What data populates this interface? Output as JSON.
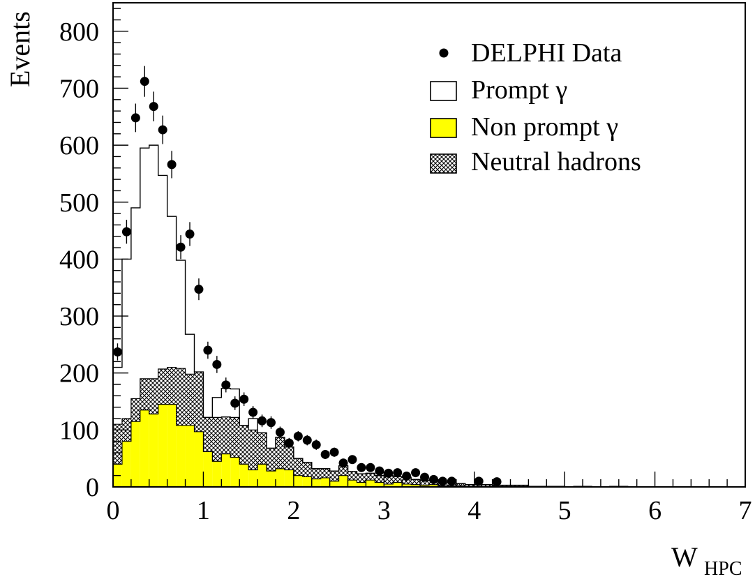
{
  "chart_data": {
    "type": "bar",
    "title": "",
    "xlabel_main": "W",
    "xlabel_sub": "HPC",
    "ylabel": "Events",
    "xlim": [
      0,
      7
    ],
    "ylim": [
      0,
      850
    ],
    "xticks": [
      "0",
      "1",
      "2",
      "3",
      "4",
      "5",
      "6",
      "7"
    ],
    "yticks": [
      "0",
      "100",
      "200",
      "300",
      "400",
      "500",
      "600",
      "700",
      "800"
    ],
    "bin_width": 0.1,
    "legend_position": "top-right",
    "legend": [
      {
        "key": "data",
        "label": "DELPHI Data",
        "symbol": "filled-circle"
      },
      {
        "key": "prompt",
        "label": "Prompt γ",
        "symbol": "open-box"
      },
      {
        "key": "nonprompt",
        "label": "Non prompt γ",
        "symbol": "yellow-box"
      },
      {
        "key": "neutral",
        "label": "Neutral hadrons",
        "symbol": "hatched-box"
      }
    ],
    "colors": {
      "nonprompt": "#ffff00",
      "neutral_hatch": "#000000",
      "data": "#000000"
    },
    "series": [
      {
        "name": "Non prompt γ",
        "type": "stacked-histogram",
        "values": [
          40,
          80,
          115,
          135,
          128,
          145,
          145,
          108,
          108,
          97,
          62,
          45,
          58,
          52,
          40,
          30,
          40,
          28,
          32,
          30,
          20,
          18,
          14,
          16,
          10,
          20,
          12,
          8,
          12,
          8,
          5,
          8,
          5,
          4,
          3,
          4,
          2,
          2,
          2,
          1,
          1,
          1,
          1,
          1,
          1,
          1,
          0,
          0,
          0,
          0,
          0,
          0,
          0,
          0,
          0,
          0,
          0,
          0,
          0,
          0,
          0,
          0,
          0,
          0,
          0,
          0,
          0,
          0,
          0,
          0
        ]
      },
      {
        "name": "Neutral hadrons",
        "type": "stacked-histogram",
        "values": [
          70,
          40,
          40,
          55,
          62,
          62,
          65,
          100,
          90,
          105,
          60,
          77,
          65,
          70,
          68,
          70,
          55,
          40,
          55,
          40,
          30,
          25,
          18,
          16,
          18,
          17,
          15,
          15,
          12,
          12,
          15,
          10,
          12,
          9,
          8,
          8,
          5,
          5,
          4,
          3,
          3,
          3,
          2,
          2,
          2,
          2,
          1,
          1,
          1,
          1,
          0,
          1,
          1,
          0,
          0,
          1,
          1,
          0,
          0,
          0,
          0,
          0,
          0,
          0,
          0,
          0,
          0,
          0,
          0,
          0
        ]
      },
      {
        "name": "Prompt γ",
        "type": "stacked-histogram",
        "values": [
          100,
          280,
          335,
          405,
          410,
          340,
          265,
          190,
          70,
          0,
          0,
          35,
          50,
          50,
          0,
          20,
          0,
          0,
          0,
          0,
          0,
          0,
          0,
          0,
          0,
          0,
          0,
          0,
          0,
          0,
          0,
          0,
          0,
          0,
          0,
          0,
          0,
          0,
          0,
          0,
          0,
          0,
          0,
          0,
          0,
          0,
          0,
          0,
          0,
          0,
          0,
          0,
          0,
          0,
          0,
          0,
          0,
          0,
          0,
          0,
          0,
          0,
          0,
          0,
          0,
          0,
          0,
          0,
          0,
          0
        ]
      },
      {
        "name": "DELPHI Data",
        "type": "points",
        "x": [
          0.05,
          0.15,
          0.25,
          0.35,
          0.45,
          0.55,
          0.65,
          0.75,
          0.85,
          0.95,
          1.05,
          1.15,
          1.25,
          1.35,
          1.45,
          1.55,
          1.65,
          1.75,
          1.85,
          1.95,
          2.05,
          2.15,
          2.25,
          2.35,
          2.45,
          2.55,
          2.65,
          2.75,
          2.85,
          2.95,
          3.05,
          3.15,
          3.25,
          3.35,
          3.45,
          3.55,
          3.65,
          3.75,
          4.05,
          4.25
        ],
        "y": [
          237,
          448,
          648,
          712,
          668,
          627,
          566,
          421,
          444,
          347,
          240,
          215,
          179,
          147,
          154,
          131,
          116,
          113,
          96,
          77,
          89,
          82,
          74,
          57,
          61,
          42,
          48,
          34,
          34,
          28,
          24,
          25,
          19,
          25,
          17,
          13,
          10,
          10,
          10,
          9
        ],
        "err": [
          15,
          21,
          25,
          27,
          26,
          25,
          24,
          21,
          21,
          19,
          15,
          15,
          13,
          12,
          12,
          11,
          11,
          11,
          10,
          9,
          9,
          9,
          9,
          8,
          8,
          6,
          7,
          6,
          6,
          5,
          5,
          5,
          4,
          5,
          4,
          4,
          3,
          3,
          3,
          3
        ]
      }
    ]
  }
}
